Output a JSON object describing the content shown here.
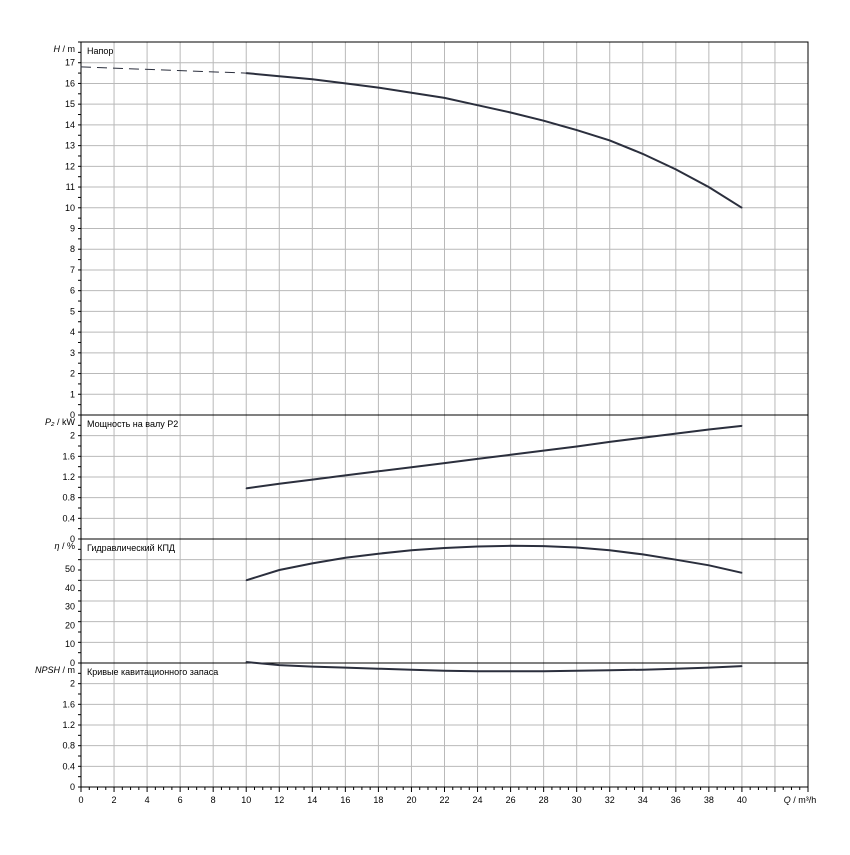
{
  "chart_data": [
    {
      "type": "line",
      "title": "Напор",
      "ylabel_var": "H",
      "ylabel_unit": "m",
      "xlim": [
        0,
        44
      ],
      "ylim": [
        0,
        18
      ],
      "yticks": [
        "0",
        "1",
        "2",
        "3",
        "4",
        "5",
        "6",
        "7",
        "8",
        "9",
        "10",
        "11",
        "12",
        "13",
        "14",
        "15",
        "16",
        "17"
      ],
      "series": [
        {
          "style": "dashed",
          "x": [
            0,
            10
          ],
          "y": [
            16.8,
            16.5
          ]
        },
        {
          "style": "solid",
          "x": [
            10,
            12,
            14,
            16,
            18,
            20,
            22,
            24,
            26,
            28,
            30,
            32,
            34,
            36,
            38,
            40
          ],
          "y": [
            16.5,
            16.35,
            16.2,
            16.0,
            15.8,
            15.55,
            15.3,
            14.95,
            14.6,
            14.2,
            13.75,
            13.25,
            12.6,
            11.85,
            11.0,
            10.0
          ]
        }
      ]
    },
    {
      "type": "line",
      "title": "Мощность на валу P2",
      "ylabel_var": "P₂",
      "ylabel_unit": "kW",
      "xlim": [
        0,
        44
      ],
      "ylim": [
        0,
        2.4
      ],
      "yticks": [
        "0",
        "0.4",
        "0.8",
        "1.2",
        "1.6",
        "2"
      ],
      "series": [
        {
          "style": "solid",
          "x": [
            10,
            12,
            14,
            16,
            18,
            20,
            22,
            24,
            26,
            28,
            30,
            32,
            34,
            36,
            38,
            40
          ],
          "y": [
            0.98,
            1.07,
            1.15,
            1.23,
            1.31,
            1.39,
            1.47,
            1.55,
            1.63,
            1.71,
            1.79,
            1.88,
            1.96,
            2.04,
            2.12,
            2.19
          ]
        }
      ]
    },
    {
      "type": "line",
      "title": "Гидравлический КПД",
      "ylabel_var": "η",
      "ylabel_unit": "%",
      "xlim": [
        0,
        44
      ],
      "ylim": [
        0,
        66
      ],
      "yticks": [
        "0",
        "10",
        "20",
        "30",
        "40",
        "50"
      ],
      "series": [
        {
          "style": "solid",
          "x": [
            10,
            12,
            14,
            16,
            18,
            20,
            22,
            24,
            26,
            28,
            30,
            32,
            34,
            36,
            38,
            40
          ],
          "y": [
            44,
            49.5,
            53,
            56,
            58.2,
            60,
            61.2,
            62,
            62.4,
            62.2,
            61.5,
            60,
            57.8,
            55,
            52,
            48
          ]
        }
      ]
    },
    {
      "type": "line",
      "title": "Кривые кавитационного запаса",
      "ylabel_var": "NPSH",
      "ylabel_unit": "m",
      "xlim": [
        0,
        44
      ],
      "ylim": [
        0,
        2.4
      ],
      "yticks": [
        "0",
        "0.4",
        "0.8",
        "1.2",
        "1.6",
        "2"
      ],
      "xticks": [
        "0",
        "2",
        "4",
        "6",
        "8",
        "10",
        "12",
        "14",
        "16",
        "18",
        "20",
        "22",
        "24",
        "26",
        "28",
        "30",
        "32",
        "34",
        "36",
        "38",
        "40"
      ],
      "xlabel_var": "Q",
      "xlabel_unit": "m³/h",
      "series": [
        {
          "style": "solid",
          "x": [
            10,
            12,
            14,
            16,
            18,
            20,
            22,
            24,
            26,
            28,
            30,
            32,
            34,
            36,
            38,
            40
          ],
          "y": [
            2.42,
            2.36,
            2.33,
            2.31,
            2.29,
            2.27,
            2.25,
            2.24,
            2.24,
            2.24,
            2.25,
            2.26,
            2.27,
            2.29,
            2.31,
            2.34
          ]
        }
      ]
    }
  ]
}
